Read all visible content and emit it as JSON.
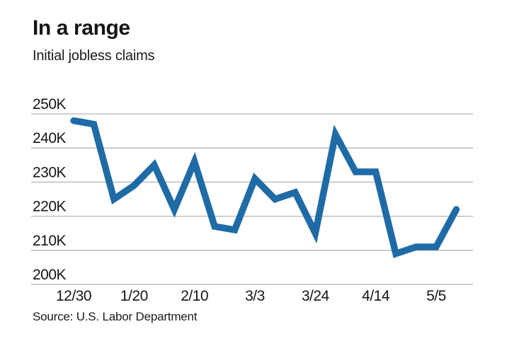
{
  "header": {
    "title": "In a range",
    "subtitle": "Initial jobless claims"
  },
  "footer": {
    "source": "Source: U.S. Labor Department"
  },
  "chart_data": {
    "type": "line",
    "title": "In a range",
    "subtitle": "Initial jobless claims",
    "series": [
      {
        "name": "Initial jobless claims (thousands)",
        "values": [
          248,
          247,
          225,
          229,
          235,
          222,
          236,
          217,
          216,
          231,
          225,
          227,
          215,
          244,
          233,
          233,
          209,
          211,
          211,
          222
        ]
      }
    ],
    "x_tick_labels": [
      "12/30",
      "1/20",
      "2/10",
      "3/3",
      "3/24",
      "4/14",
      "5/5"
    ],
    "x_tick_step": 3,
    "y_ticks": [
      {
        "value": 250,
        "label": "250K"
      },
      {
        "value": 240,
        "label": "240K"
      },
      {
        "value": 230,
        "label": "230K"
      },
      {
        "value": 220,
        "label": "220K"
      },
      {
        "value": 210,
        "label": "210K"
      },
      {
        "value": 200,
        "label": "200K"
      }
    ],
    "ylim": [
      200,
      250
    ],
    "grid": true,
    "legend": "none",
    "line_color": "#1f6ba6",
    "grid_color": "#b5b5b5"
  }
}
